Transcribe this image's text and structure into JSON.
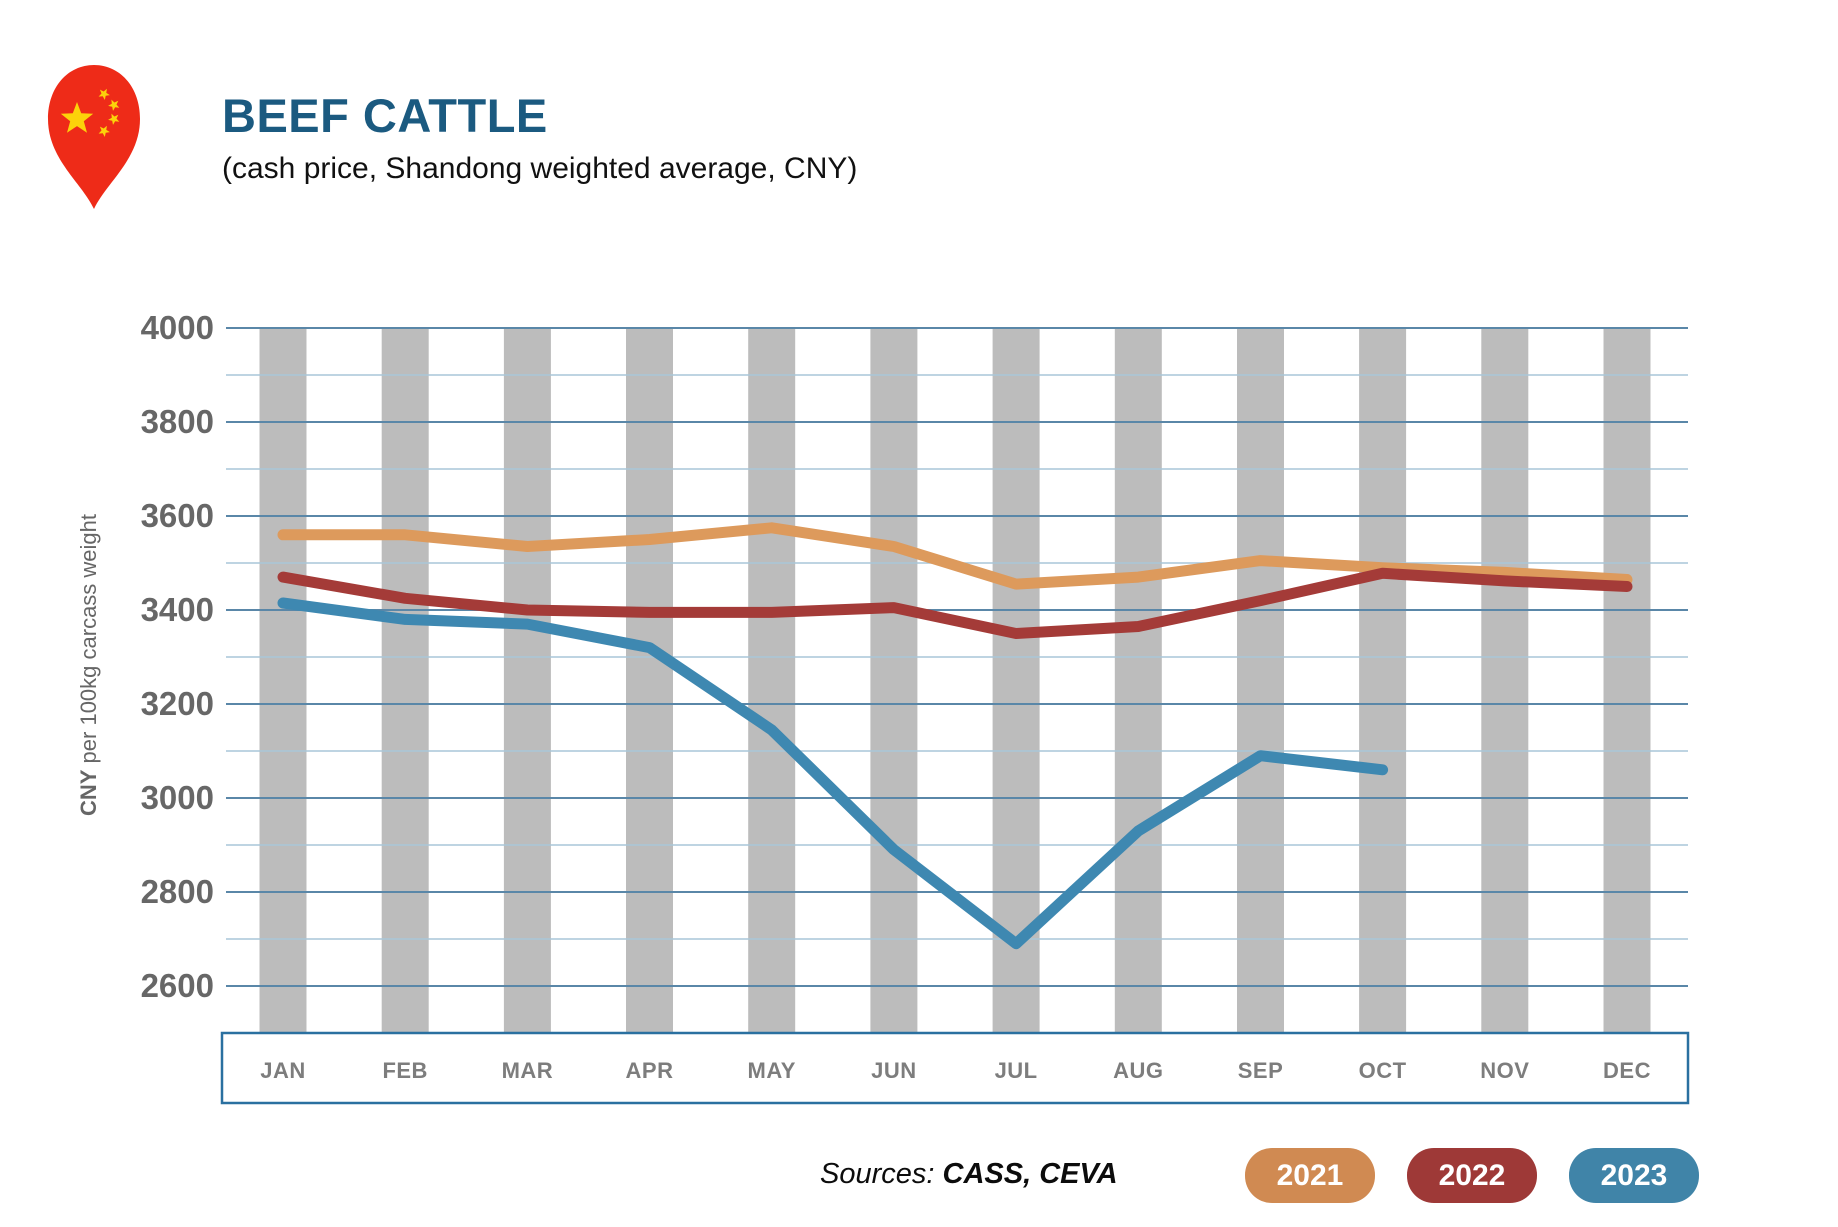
{
  "header": {
    "title": "BEEF CATTLE",
    "subtitle": "(cash price, Shandong weighted average, CNY)",
    "title_color": "#1b5a80",
    "pin": {
      "body_color": "#ee2b18",
      "star_color": "#fcd20a"
    }
  },
  "footer": {
    "sources_label": "Sources:",
    "sources_value": "CASS, CEVA",
    "legend": [
      {
        "label": "2021",
        "color": "#d08a52"
      },
      {
        "label": "2022",
        "color": "#9e3937"
      },
      {
        "label": "2023",
        "color": "#4084a8"
      }
    ]
  },
  "chart_data": {
    "type": "line",
    "title": "BEEF CATTLE",
    "subtitle": "(cash price, Shandong weighted average, CNY)",
    "xlabel": "",
    "ylabel": "CNY per 100kg carcass weight",
    "ylabel_bold_part": "CNY",
    "ylim": [
      2500,
      4000
    ],
    "ytick_minor_step": 100,
    "ytick_labels": [
      2600,
      2800,
      3000,
      3200,
      3400,
      3600,
      3800,
      4000
    ],
    "grid": true,
    "legend_position": "bottom-right",
    "categories": [
      "JAN",
      "FEB",
      "MAR",
      "APR",
      "MAY",
      "JUN",
      "JUL",
      "AUG",
      "SEP",
      "OCT",
      "NOV",
      "DEC"
    ],
    "series": [
      {
        "name": "2021",
        "color": "#dd9a5c",
        "values": [
          3560,
          3560,
          3535,
          3550,
          3575,
          3535,
          3455,
          3470,
          3505,
          3490,
          3480,
          3465
        ]
      },
      {
        "name": "2022",
        "color": "#a43b38",
        "values": [
          3470,
          3425,
          3400,
          3395,
          3395,
          3405,
          3350,
          3365,
          3420,
          3478,
          3462,
          3450
        ]
      },
      {
        "name": "2023",
        "color": "#3e88b1",
        "values": [
          3415,
          3380,
          3370,
          3320,
          3145,
          2890,
          2690,
          2930,
          3090,
          3060,
          null,
          null
        ]
      }
    ],
    "style": {
      "stripe_color": "#bcbcbc",
      "grid_major_color": "#5a87a8",
      "grid_minor_color": "#a9c6d8",
      "axis_box_border": "#2a70a0",
      "line_width": 11
    }
  }
}
